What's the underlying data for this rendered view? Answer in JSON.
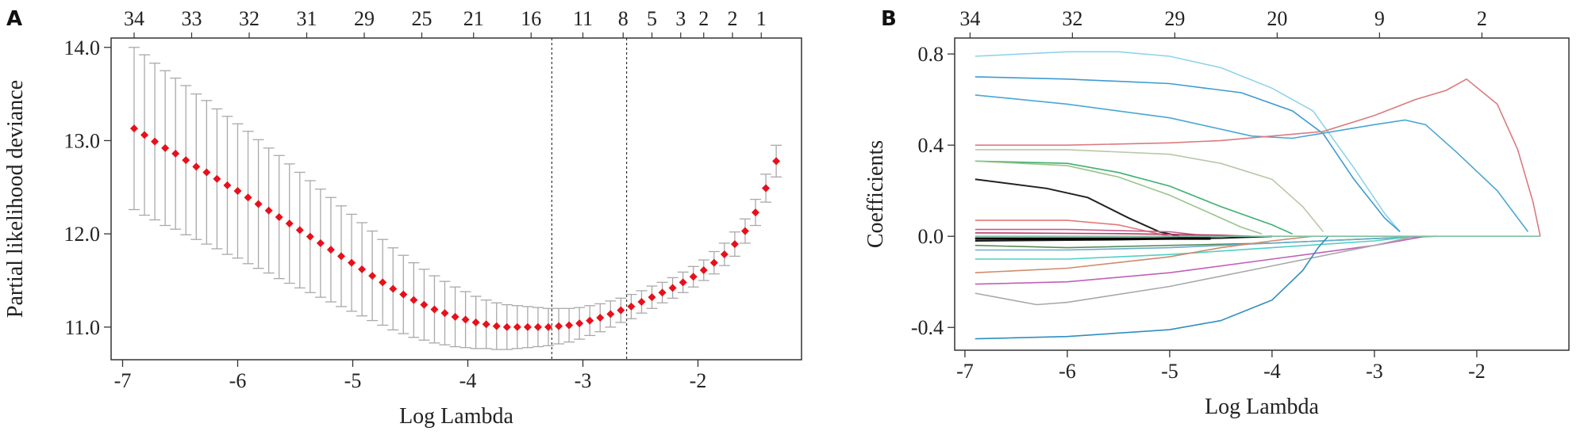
{
  "chart_data": [
    {
      "panel_label": "A",
      "type": "scatter",
      "xlabel": "Log Lambda",
      "ylabel": "Partial likelihood deviance",
      "xlim": [
        -7.1,
        -1.1
      ],
      "ylim": [
        10.65,
        14.1
      ],
      "x_ticks": [
        -7,
        -6,
        -5,
        -4,
        -3,
        -2
      ],
      "x_tick_labels": [
        "-7",
        "-6",
        "-5",
        "-4",
        "-3",
        "-2"
      ],
      "y_ticks": [
        11.0,
        12.0,
        13.0,
        14.0
      ],
      "y_tick_labels": [
        "11.0",
        "12.0",
        "13.0",
        "14.0"
      ],
      "top_axis_x": [
        -6.9,
        -6.4,
        -5.9,
        -5.4,
        -4.9,
        -4.4,
        -3.95,
        -3.45,
        -3.0,
        -2.65,
        -2.4,
        -2.15,
        -1.95,
        -1.7,
        -1.45
      ],
      "top_axis_labels": [
        "34",
        "33",
        "32",
        "31",
        "29",
        "25",
        "21",
        "16",
        "11",
        "8",
        "5",
        "3",
        "2",
        "2",
        "1"
      ],
      "reference_lines_x": [
        -3.27,
        -2.62
      ],
      "grid": false,
      "series": [
        {
          "x": [
            -6.9,
            -6.81,
            -6.72,
            -6.63,
            -6.54,
            -6.45,
            -6.36,
            -6.27,
            -6.18,
            -6.09,
            -6.0,
            -5.91,
            -5.82,
            -5.73,
            -5.64,
            -5.55,
            -5.46,
            -5.37,
            -5.28,
            -5.19,
            -5.1,
            -5.01,
            -4.92,
            -4.83,
            -4.74,
            -4.65,
            -4.56,
            -4.47,
            -4.38,
            -4.29,
            -4.2,
            -4.11,
            -4.02,
            -3.93,
            -3.84,
            -3.75,
            -3.66,
            -3.57,
            -3.48,
            -3.39,
            -3.3,
            -3.21,
            -3.12,
            -3.03,
            -2.94,
            -2.85,
            -2.76,
            -2.67,
            -2.58,
            -2.49,
            -2.4,
            -2.31,
            -2.22,
            -2.13,
            -2.04,
            -1.95,
            -1.86,
            -1.77,
            -1.68,
            -1.59,
            -1.5,
            -1.41,
            -1.32
          ],
          "y": [
            13.13,
            13.06,
            12.99,
            12.92,
            12.86,
            12.79,
            12.72,
            12.66,
            12.59,
            12.52,
            12.46,
            12.39,
            12.32,
            12.25,
            12.18,
            12.11,
            12.04,
            11.97,
            11.9,
            11.83,
            11.76,
            11.69,
            11.62,
            11.55,
            11.48,
            11.41,
            11.35,
            11.29,
            11.24,
            11.19,
            11.15,
            11.11,
            11.08,
            11.05,
            11.03,
            11.01,
            11.0,
            11.0,
            11.0,
            11.0,
            11.0,
            11.01,
            11.02,
            11.04,
            11.07,
            11.1,
            11.14,
            11.18,
            11.22,
            11.27,
            11.32,
            11.37,
            11.42,
            11.48,
            11.54,
            11.61,
            11.69,
            11.78,
            11.89,
            12.03,
            12.23,
            12.49,
            12.78
          ],
          "err": [
            0.87,
            0.86,
            0.84,
            0.83,
            0.81,
            0.8,
            0.78,
            0.77,
            0.75,
            0.74,
            0.72,
            0.71,
            0.69,
            0.67,
            0.66,
            0.64,
            0.62,
            0.6,
            0.58,
            0.56,
            0.54,
            0.52,
            0.5,
            0.48,
            0.46,
            0.44,
            0.42,
            0.4,
            0.38,
            0.36,
            0.34,
            0.32,
            0.3,
            0.28,
            0.26,
            0.25,
            0.24,
            0.23,
            0.22,
            0.21,
            0.2,
            0.19,
            0.18,
            0.17,
            0.16,
            0.15,
            0.14,
            0.13,
            0.13,
            0.12,
            0.12,
            0.11,
            0.11,
            0.11,
            0.11,
            0.11,
            0.12,
            0.12,
            0.13,
            0.13,
            0.14,
            0.15,
            0.17
          ],
          "color": "#e8101a",
          "error_color": "#a9a9a9"
        }
      ]
    },
    {
      "panel_label": "B",
      "type": "line",
      "xlabel": "Log Lambda",
      "ylabel": "Coefficients",
      "xlim": [
        -7.1,
        -1.1
      ],
      "ylim": [
        -0.5,
        0.87
      ],
      "x_ticks": [
        -7,
        -6,
        -5,
        -4,
        -3,
        -2
      ],
      "x_tick_labels": [
        "-7",
        "-6",
        "-5",
        "-4",
        "-3",
        "-2"
      ],
      "y_ticks": [
        -0.4,
        0.0,
        0.4,
        0.8
      ],
      "y_tick_labels": [
        "-0.4",
        "0.0",
        "0.4",
        "0.8"
      ],
      "top_axis_x": [
        -6.95,
        -5.95,
        -4.95,
        -3.95,
        -2.95,
        -1.95
      ],
      "top_axis_labels": [
        "34",
        "32",
        "29",
        "20",
        "9",
        "2"
      ],
      "grid": false,
      "series": [
        {
          "x": [
            -6.9,
            -6.0,
            -5.5,
            -5.0,
            -4.5,
            -4.0,
            -3.6,
            -3.2,
            -2.9,
            -2.75
          ],
          "y": [
            0.79,
            0.81,
            0.81,
            0.79,
            0.74,
            0.65,
            0.55,
            0.3,
            0.1,
            0.02
          ],
          "color": "#8dd3ea"
        },
        {
          "x": [
            -6.9,
            -6.0,
            -5.0,
            -4.3,
            -3.8,
            -3.5,
            -3.2,
            -2.9,
            -2.75
          ],
          "y": [
            0.7,
            0.69,
            0.67,
            0.63,
            0.55,
            0.45,
            0.25,
            0.08,
            0.02
          ],
          "color": "#3d9bd0"
        },
        {
          "x": [
            -6.9,
            -6.0,
            -5.0,
            -4.2,
            -3.8,
            -3.4,
            -3.0,
            -2.7,
            -2.5,
            -2.2,
            -1.8,
            -1.5
          ],
          "y": [
            0.62,
            0.58,
            0.52,
            0.44,
            0.43,
            0.46,
            0.49,
            0.51,
            0.49,
            0.37,
            0.2,
            0.02
          ],
          "color": "#49a6d4"
        },
        {
          "x": [
            -6.9,
            -6.0,
            -5.0,
            -4.5,
            -4.0,
            -3.5,
            -3.0,
            -2.6,
            -2.3,
            -2.1,
            -1.8,
            -1.6,
            -1.45,
            -1.38
          ],
          "y": [
            0.4,
            0.4,
            0.41,
            0.42,
            0.44,
            0.46,
            0.53,
            0.6,
            0.64,
            0.69,
            0.58,
            0.38,
            0.15,
            0.0
          ],
          "color": "#d97b80"
        },
        {
          "x": [
            -6.9,
            -6.0,
            -5.0,
            -4.5,
            -4.0,
            -3.7,
            -3.5
          ],
          "y": [
            0.38,
            0.38,
            0.36,
            0.32,
            0.25,
            0.13,
            0.02
          ],
          "color": "#b8c7a8"
        },
        {
          "x": [
            -6.9,
            -6.0,
            -5.5,
            -5.0,
            -4.5,
            -4.0,
            -3.8
          ],
          "y": [
            0.33,
            0.32,
            0.28,
            0.22,
            0.13,
            0.05,
            0.01
          ],
          "color": "#3cb070"
        },
        {
          "x": [
            -6.9,
            -6.0,
            -5.5,
            -5.0,
            -4.6,
            -4.3,
            -4.1
          ],
          "y": [
            0.33,
            0.31,
            0.26,
            0.18,
            0.1,
            0.04,
            0.01
          ],
          "color": "#9ac48a"
        },
        {
          "x": [
            -6.9,
            -6.2,
            -5.8,
            -5.4,
            -5.1,
            -4.9,
            -4.7
          ],
          "y": [
            0.25,
            0.21,
            0.17,
            0.08,
            0.02,
            0.0,
            0.0
          ],
          "color": "#222222"
        },
        {
          "x": [
            -6.9,
            -6.0,
            -5.5,
            -5.2,
            -5.0
          ],
          "y": [
            0.07,
            0.07,
            0.05,
            0.02,
            0.0
          ],
          "color": "#e07a7a"
        },
        {
          "x": [
            -6.9,
            -6.0,
            -5.0,
            -4.6
          ],
          "y": [
            0.03,
            0.03,
            0.02,
            0.0
          ],
          "color": "#c85a90"
        },
        {
          "x": [
            -6.9,
            -5.5,
            -4.5,
            -4.2
          ],
          "y": [
            0.015,
            0.012,
            0.005,
            0.0
          ],
          "color": "#b83a6a"
        },
        {
          "x": [
            -6.9,
            -5.5,
            -4.5,
            -4.0
          ],
          "y": [
            -0.02,
            -0.015,
            -0.008,
            0.0
          ],
          "color": "#1a1a1a"
        },
        {
          "x": [
            -6.9,
            -5.5,
            -4.8,
            -4.5
          ],
          "y": [
            -0.01,
            -0.01,
            -0.005,
            0.0
          ],
          "color": "#7a3a9a"
        },
        {
          "x": [
            -6.9,
            -6.0,
            -5.0,
            -4.0,
            -3.0,
            -2.4
          ],
          "y": [
            -0.04,
            -0.05,
            -0.04,
            -0.03,
            -0.01,
            0.0
          ],
          "color": "#5a8a5a"
        },
        {
          "x": [
            -6.9,
            -6.0,
            -5.0,
            -4.0,
            -3.0,
            -2.5
          ],
          "y": [
            -0.06,
            -0.06,
            -0.05,
            -0.03,
            -0.01,
            0.0
          ],
          "color": "#6aaccc"
        },
        {
          "x": [
            -6.9,
            -6.0,
            -5.0,
            -4.0,
            -3.0,
            -2.6
          ],
          "y": [
            -0.1,
            -0.1,
            -0.08,
            -0.05,
            -0.02,
            0.0
          ],
          "color": "#4fd0c4"
        },
        {
          "x": [
            -6.9,
            -6.0,
            -5.0,
            -4.5,
            -4.0,
            -3.6
          ],
          "y": [
            -0.16,
            -0.14,
            -0.09,
            -0.05,
            -0.02,
            0.0
          ],
          "color": "#d08a6a"
        },
        {
          "x": [
            -6.9,
            -6.0,
            -5.0,
            -4.0,
            -3.0,
            -2.5
          ],
          "y": [
            -0.21,
            -0.2,
            -0.16,
            -0.1,
            -0.04,
            0.0
          ],
          "color": "#c060b8"
        },
        {
          "x": [
            -6.9,
            -6.3,
            -6.0,
            -5.0,
            -4.0,
            -3.0,
            -2.6
          ],
          "y": [
            -0.25,
            -0.3,
            -0.29,
            -0.22,
            -0.13,
            -0.04,
            0.0
          ],
          "color": "#a8a8a8"
        },
        {
          "x": [
            -6.9,
            -6.0,
            -5.0,
            -4.5,
            -4.0,
            -3.7,
            -3.55,
            -3.45
          ],
          "y": [
            -0.45,
            -0.44,
            -0.41,
            -0.37,
            -0.28,
            -0.15,
            -0.05,
            0.0
          ],
          "color": "#2f8ec0"
        },
        {
          "x": [
            -6.9,
            -5.0,
            -3.0,
            -1.38
          ],
          "y": [
            0.0,
            0.0,
            0.0,
            0.0
          ],
          "color": "#7fbfa0"
        }
      ]
    }
  ]
}
